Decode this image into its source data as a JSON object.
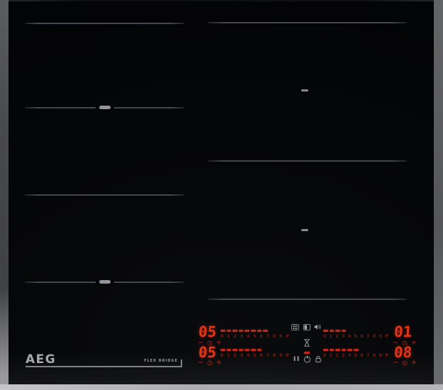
{
  "brand": {
    "logo_text": "AEG",
    "series_label": "FLEX BRIDGE"
  },
  "controls": {
    "slider_scale_labels": [
      "0",
      "1",
      "2",
      "3",
      "4",
      "5",
      "6",
      "7",
      "8",
      "9",
      "P"
    ],
    "timer_minus_label": "−",
    "timer_plus_label": "+",
    "pause_label": "II",
    "zones": [
      {
        "name": "rear-left",
        "power_level": "05",
        "lit_slider_segments": 8
      },
      {
        "name": "front-left",
        "power_level": "05",
        "lit_slider_segments": 7
      },
      {
        "name": "rear-right",
        "power_level": "01",
        "lit_slider_segments": 4
      },
      {
        "name": "front-right",
        "power_level": "08",
        "lit_slider_segments": 6
      }
    ],
    "icons": [
      "pot-detection",
      "bridge-zone",
      "sound",
      "hourglass-timer",
      "pause",
      "power",
      "lock",
      "timer-clock"
    ]
  },
  "colors": {
    "display_red": "#e23418",
    "dim_red": "#8c2014",
    "slider_dash_red": "#c1281a",
    "label_red": "#7e1c10",
    "icon_grey": "#a7abae",
    "zone_line_grey": "#42474d"
  }
}
